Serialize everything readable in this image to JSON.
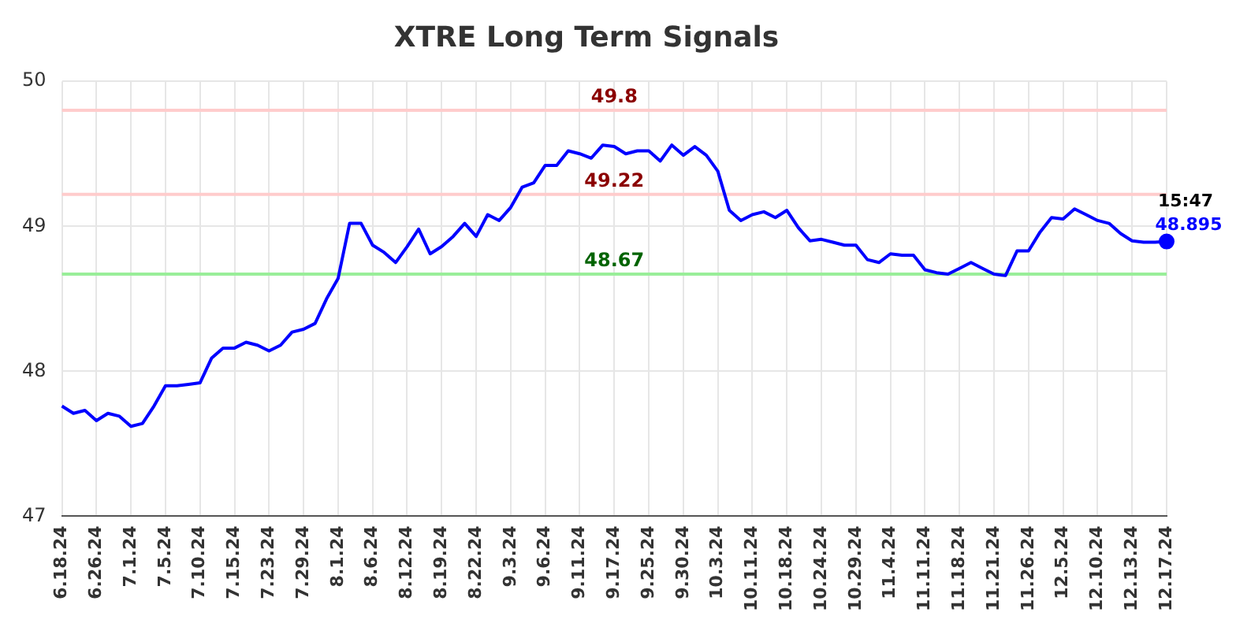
{
  "chart_data": {
    "type": "line",
    "title": "XTRE Long Term Signals",
    "categories": [
      "6.18.24",
      null,
      null,
      "6.26.24",
      null,
      null,
      "7.1.24",
      null,
      null,
      "7.5.24",
      null,
      null,
      "7.10.24",
      null,
      null,
      "7.15.24",
      null,
      null,
      "7.23.24",
      null,
      null,
      "7.29.24",
      null,
      null,
      "8.1.24",
      null,
      null,
      "8.6.24",
      null,
      null,
      "8.12.24",
      null,
      null,
      "8.19.24",
      null,
      null,
      "8.22.24",
      null,
      null,
      "9.3.24",
      null,
      null,
      "9.6.24",
      null,
      null,
      "9.11.24",
      null,
      null,
      "9.17.24",
      null,
      null,
      "9.25.24",
      null,
      null,
      "9.30.24",
      null,
      null,
      "10.3.24",
      null,
      null,
      "10.11.24",
      null,
      null,
      "10.18.24",
      null,
      null,
      "10.24.24",
      null,
      null,
      "10.29.24",
      null,
      null,
      "11.4.24",
      null,
      null,
      "11.11.24",
      null,
      null,
      "11.18.24",
      null,
      null,
      "11.21.24",
      null,
      null,
      "11.26.24",
      null,
      null,
      "12.5.24",
      null,
      null,
      "12.10.24",
      null,
      null,
      "12.13.24",
      null,
      null,
      "12.17.24"
    ],
    "series": [
      {
        "color": "#0000ff",
        "values": [
          47.76,
          47.71,
          47.73,
          47.66,
          47.71,
          47.69,
          47.62,
          47.64,
          47.76,
          47.9,
          47.9,
          47.91,
          47.92,
          48.09,
          48.16,
          48.16,
          48.2,
          48.18,
          48.14,
          48.18,
          48.27,
          48.29,
          48.33,
          48.5,
          48.64,
          49.02,
          49.02,
          48.87,
          48.82,
          48.75,
          48.86,
          48.98,
          48.81,
          48.86,
          48.93,
          49.02,
          48.93,
          49.08,
          49.04,
          49.13,
          49.27,
          49.3,
          49.42,
          49.42,
          49.52,
          49.5,
          49.47,
          49.56,
          49.55,
          49.5,
          49.52,
          49.52,
          49.45,
          49.56,
          49.49,
          49.55,
          49.49,
          49.38,
          49.11,
          49.04,
          49.08,
          49.1,
          49.06,
          49.11,
          48.99,
          48.9,
          48.91,
          48.89,
          48.87,
          48.87,
          48.77,
          48.75,
          48.81,
          48.8,
          48.8,
          48.7,
          48.68,
          48.67,
          48.71,
          48.75,
          48.71,
          48.67,
          48.66,
          48.83,
          48.83,
          48.96,
          49.06,
          49.05,
          49.12,
          49.08,
          49.04,
          49.02,
          48.95,
          48.9,
          48.89,
          48.89,
          48.895
        ],
        "value_labels": [
          null,
          null,
          null,
          null,
          null,
          null,
          null,
          null,
          null,
          null,
          null,
          null,
          null,
          null,
          null,
          null,
          null,
          null,
          null,
          null,
          null,
          null,
          null,
          null,
          null,
          null,
          null,
          null,
          null,
          null,
          null,
          null,
          null,
          null,
          null,
          null,
          null,
          null,
          null,
          null,
          null,
          null,
          null,
          null,
          null,
          null,
          null,
          null,
          null,
          null,
          null,
          null,
          null,
          null,
          null,
          null,
          null,
          null,
          null,
          null,
          null,
          null,
          null,
          null,
          null,
          null,
          null,
          null,
          null,
          null,
          null,
          null,
          null,
          null,
          null,
          null,
          null,
          null,
          null,
          null,
          null,
          null,
          null,
          null,
          null,
          null,
          null,
          null,
          null,
          null,
          null,
          null,
          null,
          null,
          null,
          null,
          "48.895"
        ]
      }
    ],
    "ylim": [
      47,
      50
    ],
    "yticks": [
      47,
      48,
      49,
      50
    ],
    "grid": true,
    "marker": "none",
    "line_style": "solid",
    "ref_lines": [
      {
        "axis": "y",
        "value": 49.8,
        "label": "49.8",
        "color": "#ffcccc"
      },
      {
        "axis": "y",
        "value": 49.22,
        "label": "49.22",
        "color": "#ffcccc"
      },
      {
        "axis": "y",
        "value": 48.67,
        "label": "48.67",
        "color": "#99ee99"
      }
    ],
    "annotations": [
      {
        "text": "15:47",
        "x": "12.17.24",
        "y": 48.895
      }
    ]
  }
}
